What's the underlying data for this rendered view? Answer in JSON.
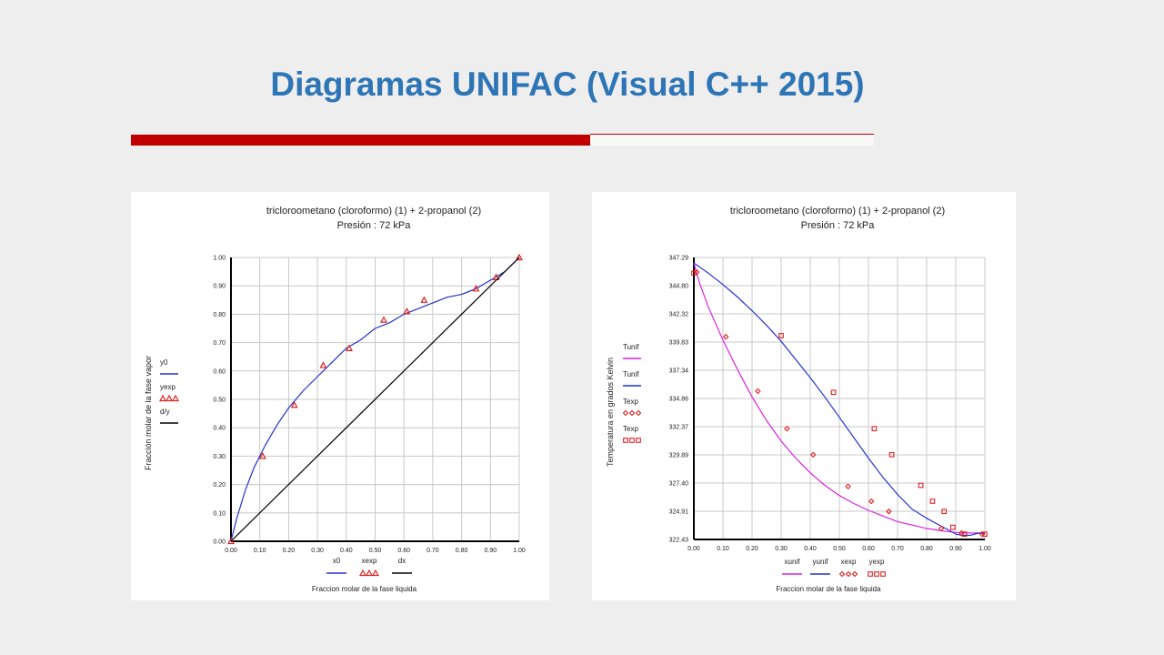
{
  "slide": {
    "title": "Diagramas UNIFAC (Visual C++ 2015)"
  },
  "colors": {
    "title": "#2e75b6",
    "accent": "#c00000",
    "curve_blue": "#2233cc",
    "curve_magenta": "#dd22dd",
    "markers": "#e02020",
    "diagonal": "#000000"
  },
  "chart_data": [
    {
      "type": "line",
      "title": "tricloroometano (cloroformo) (1)  + 2-propanol (2)",
      "subtitle": "Presión : 72 kPa",
      "xlabel": "Fraccion molar de la fase liquida",
      "ylabel": "Fracción molar de la fase vapor",
      "xlim": [
        0,
        1
      ],
      "ylim": [
        0,
        1
      ],
      "x_ticks": [
        "0.00",
        "0.10",
        "0.20",
        "0.30",
        "0.40",
        "0.50",
        "0.60",
        "0.70",
        "0.80",
        "0.90",
        "1.00"
      ],
      "y_ticks": [
        "0.00",
        "0.10",
        "0.20",
        "0.30",
        "0.40",
        "0.50",
        "0.60",
        "0.70",
        "0.80",
        "0.90",
        "1.00"
      ],
      "grid": true,
      "legend": [
        {
          "label": "y0",
          "style": "line",
          "color": "#2233cc"
        },
        {
          "label": "yexp",
          "style": "triangles",
          "color": "#e02020"
        },
        {
          "label": "d/y",
          "style": "line",
          "color": "#000000"
        }
      ],
      "bottom_legend": [
        {
          "label": "x0",
          "style": "line",
          "color": "#2233cc"
        },
        {
          "label": "xexp",
          "style": "triangles",
          "color": "#e02020"
        },
        {
          "label": "dx",
          "style": "line",
          "color": "#000000"
        }
      ],
      "series": [
        {
          "name": "y0",
          "kind": "line",
          "color": "#2233cc",
          "x": [
            0,
            0.02,
            0.05,
            0.08,
            0.12,
            0.16,
            0.2,
            0.25,
            0.3,
            0.35,
            0.4,
            0.45,
            0.5,
            0.55,
            0.6,
            0.65,
            0.7,
            0.75,
            0.8,
            0.85,
            0.9,
            0.95,
            1.0
          ],
          "y": [
            0,
            0.08,
            0.18,
            0.26,
            0.34,
            0.41,
            0.47,
            0.53,
            0.58,
            0.63,
            0.68,
            0.71,
            0.75,
            0.77,
            0.8,
            0.82,
            0.84,
            0.86,
            0.87,
            0.89,
            0.92,
            0.95,
            1.0
          ]
        },
        {
          "name": "yexp",
          "kind": "triangles",
          "color": "#e02020",
          "x": [
            0.0,
            0.11,
            0.22,
            0.32,
            0.41,
            0.53,
            0.61,
            0.67,
            0.85,
            0.92,
            1.0
          ],
          "y": [
            0.0,
            0.3,
            0.48,
            0.62,
            0.68,
            0.78,
            0.81,
            0.85,
            0.89,
            0.93,
            1.0
          ]
        },
        {
          "name": "d/y",
          "kind": "line",
          "color": "#000000",
          "x": [
            0,
            1
          ],
          "y": [
            0,
            1
          ]
        }
      ]
    },
    {
      "type": "line",
      "title": "tricloroometano (cloroformo) (1)  + 2-propanol (2)",
      "subtitle": "Presión : 72 kPa",
      "xlabel": "Fraccion molar de la fase liquida",
      "ylabel": "Temperatura en grados Kelvin",
      "xlim": [
        0,
        1
      ],
      "ylim": [
        322.43,
        347.29
      ],
      "x_ticks": [
        "0.00",
        "0.10",
        "0.20",
        "0.30",
        "0.40",
        "0.50",
        "0.60",
        "0.70",
        "0.80",
        "0.90",
        "1.00"
      ],
      "y_ticks": [
        "322.43",
        "324.91",
        "327.40",
        "329.89",
        "332.37",
        "334.86",
        "337.34",
        "339.83",
        "342.32",
        "344.80",
        "347.29"
      ],
      "grid": true,
      "legend": [
        {
          "label": "Tunif",
          "style": "line",
          "color": "#dd22dd"
        },
        {
          "label": "Tunif",
          "style": "line",
          "color": "#2233cc"
        },
        {
          "label": "Texp",
          "style": "diamonds",
          "color": "#e02020"
        },
        {
          "label": "Texp",
          "style": "squares",
          "color": "#e02020"
        }
      ],
      "bottom_legend": [
        {
          "label": "xunif",
          "style": "line",
          "color": "#dd22dd"
        },
        {
          "label": "yunif",
          "style": "line",
          "color": "#2233cc"
        },
        {
          "label": "xexp",
          "style": "diamonds",
          "color": "#e02020"
        },
        {
          "label": "yexp",
          "style": "squares",
          "color": "#e02020"
        }
      ],
      "series": [
        {
          "name": "Tunif (x)",
          "kind": "line",
          "color": "#dd22dd",
          "x": [
            0,
            0.02,
            0.05,
            0.1,
            0.15,
            0.2,
            0.25,
            0.3,
            0.35,
            0.4,
            0.45,
            0.5,
            0.55,
            0.6,
            0.65,
            0.7,
            0.75,
            0.8,
            0.85,
            0.9,
            0.95,
            1.0
          ],
          "y": [
            346.8,
            345.0,
            342.9,
            340.0,
            337.4,
            335.0,
            332.9,
            331.1,
            329.6,
            328.3,
            327.2,
            326.3,
            325.6,
            325.0,
            324.5,
            324.0,
            323.7,
            323.4,
            323.2,
            323.05,
            323.0,
            323.0
          ]
        },
        {
          "name": "Tunif (y)",
          "kind": "line",
          "color": "#2233cc",
          "x": [
            0,
            0.05,
            0.1,
            0.15,
            0.2,
            0.25,
            0.3,
            0.35,
            0.4,
            0.45,
            0.5,
            0.55,
            0.6,
            0.65,
            0.7,
            0.75,
            0.8,
            0.85,
            0.88,
            0.9,
            0.92,
            0.95,
            0.98,
            1.0
          ],
          "y": [
            346.8,
            345.9,
            344.9,
            343.8,
            342.6,
            341.3,
            339.9,
            338.3,
            336.7,
            335.0,
            333.2,
            331.4,
            329.6,
            327.9,
            326.4,
            325.1,
            324.3,
            323.6,
            323.2,
            322.9,
            322.8,
            322.8,
            323.0,
            322.9
          ]
        },
        {
          "name": "Texp (x)",
          "kind": "diamonds",
          "color": "#e02020",
          "x": [
            0.01,
            0.11,
            0.22,
            0.32,
            0.41,
            0.53,
            0.61,
            0.67,
            0.85,
            0.92,
            0.99
          ],
          "y": [
            346.0,
            340.3,
            335.5,
            332.2,
            329.9,
            327.1,
            325.8,
            324.9,
            323.4,
            323.0,
            322.9
          ]
        },
        {
          "name": "Texp (y)",
          "kind": "squares",
          "color": "#e02020",
          "x": [
            0.0,
            0.3,
            0.48,
            0.62,
            0.68,
            0.78,
            0.82,
            0.86,
            0.89,
            0.93,
            1.0
          ],
          "y": [
            345.9,
            340.4,
            335.4,
            332.2,
            329.9,
            327.2,
            325.8,
            324.9,
            323.5,
            322.9,
            322.9
          ]
        }
      ]
    }
  ]
}
